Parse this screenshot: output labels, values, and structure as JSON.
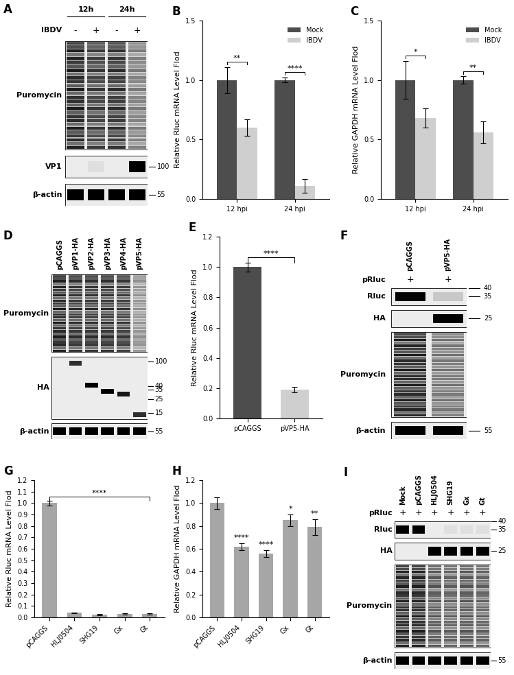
{
  "chart_data": [
    {
      "panel": "B",
      "type": "bar",
      "ylabel": "Relative Rluc mRNA Level Flod",
      "categories": [
        "12 hpi",
        "24 hpi"
      ],
      "series": [
        {
          "name": "Mock",
          "color": "#4d4d4d",
          "values": [
            1.0,
            1.0
          ],
          "errors": [
            0.11,
            0.02
          ]
        },
        {
          "name": "IBDV",
          "color": "#cfcfcf",
          "values": [
            0.6,
            0.11
          ],
          "errors": [
            0.07,
            0.06
          ]
        }
      ],
      "significance": [
        "**",
        "****"
      ],
      "ylim": [
        0,
        1.5
      ],
      "yticks": [
        {
          "value": 0,
          "label": "0.0"
        },
        {
          "value": 0.5,
          "label": "0.5"
        },
        {
          "value": 1,
          "label": "1.0"
        },
        {
          "value": 1.5,
          "label": "1.5"
        }
      ],
      "legend": "upper right"
    },
    {
      "panel": "C",
      "type": "bar",
      "ylabel": "Relative GAPDH mRNA Level Flod",
      "categories": [
        "12 hpi",
        "24 hpi"
      ],
      "series": [
        {
          "name": "Mock",
          "color": "#4d4d4d",
          "values": [
            1.0,
            1.0
          ],
          "errors": [
            0.16,
            0.03
          ]
        },
        {
          "name": "IBDV",
          "color": "#cfcfcf",
          "values": [
            0.68,
            0.56
          ],
          "errors": [
            0.08,
            0.09
          ]
        }
      ],
      "significance": [
        "*",
        "**"
      ],
      "ylim": [
        0,
        1.5
      ],
      "yticks": [
        {
          "value": 0,
          "label": "0.0"
        },
        {
          "value": 0.5,
          "label": "0.5"
        },
        {
          "value": 1,
          "label": "1.0"
        },
        {
          "value": 1.5,
          "label": "1.5"
        }
      ],
      "legend": "upper right"
    },
    {
      "panel": "E",
      "type": "bar",
      "ylabel": "Relative Rluc mRNA Level Flod",
      "categories": [
        "pCAGGS",
        "pVP5-HA"
      ],
      "values": [
        1.0,
        0.19
      ],
      "errors": [
        0.03,
        0.02
      ],
      "colors": [
        "#4d4d4d",
        "#cfcfcf"
      ],
      "bracket": {
        "from": "pCAGGS",
        "to": "pVP5-HA",
        "label": "****"
      },
      "ylim": [
        0,
        1.2
      ],
      "yticks": [
        {
          "value": 0,
          "label": "0.0"
        },
        {
          "value": 0.2,
          "label": "0.2"
        },
        {
          "value": 0.4,
          "label": "0.4"
        },
        {
          "value": 0.6,
          "label": "0.6"
        },
        {
          "value": 0.8,
          "label": "0.8"
        },
        {
          "value": 1,
          "label": "1.0"
        },
        {
          "value": 1.2,
          "label": "1.2"
        }
      ]
    },
    {
      "panel": "G",
      "type": "bar",
      "ylabel": "Relative Rluc mRNA Level Flod",
      "categories": [
        "pCAGGS",
        "HLJ0504",
        "SHG19",
        "Gx",
        "Gt"
      ],
      "values": [
        1.0,
        0.04,
        0.025,
        0.03,
        0.03
      ],
      "errors": [
        0.02,
        0.005,
        0.004,
        0.004,
        0.004
      ],
      "color": "#a6a6a6",
      "bracket": {
        "from": "pCAGGS",
        "to": "Gt",
        "label": "****"
      },
      "ylim": [
        0,
        1.2
      ],
      "yticks": [
        {
          "value": 0,
          "label": "0.0"
        },
        {
          "value": 0.1,
          "label": "0.1"
        },
        {
          "value": 0.2,
          "label": "0.2"
        },
        {
          "value": 0.3,
          "label": "0.3"
        },
        {
          "value": 0.4,
          "label": "0.4"
        },
        {
          "value": 0.5,
          "label": "0.5"
        },
        {
          "value": 0.6,
          "label": "0.6"
        },
        {
          "value": 0.7,
          "label": "0.7"
        },
        {
          "value": 0.8,
          "label": "0.8"
        },
        {
          "value": 0.9,
          "label": "0.9"
        },
        {
          "value": 1,
          "label": "1.0"
        },
        {
          "value": 1.1,
          "label": "1.1"
        },
        {
          "value": 1.2,
          "label": "1.2"
        }
      ]
    },
    {
      "panel": "H",
      "type": "bar",
      "ylabel": "Relative GAPDH mRNA Level Flod",
      "categories": [
        "pCAGGS",
        "HLJ0504",
        "SHG19",
        "Gx",
        "Gt"
      ],
      "values": [
        1.0,
        0.62,
        0.56,
        0.85,
        0.79
      ],
      "errors": [
        0.05,
        0.03,
        0.03,
        0.05,
        0.07
      ],
      "color": "#a6a6a6",
      "significance": [
        null,
        "****",
        "****",
        "*",
        "**"
      ],
      "ylim": [
        0,
        1.2
      ],
      "yticks": [
        {
          "value": 0,
          "label": "0.0"
        },
        {
          "value": 0.2,
          "label": "0.2"
        },
        {
          "value": 0.4,
          "label": "0.4"
        },
        {
          "value": 0.6,
          "label": "0.6"
        },
        {
          "value": 0.8,
          "label": "0.8"
        },
        {
          "value": 1,
          "label": "1.0"
        },
        {
          "value": 1.2,
          "label": "1.2"
        }
      ]
    }
  ],
  "blots": [
    {
      "panel": "A",
      "lanes": [
        null,
        null,
        null,
        null
      ],
      "column_groups": [
        {
          "label": "12h",
          "span": 2
        },
        {
          "label": "24h",
          "span": 2
        }
      ],
      "treatment": {
        "label": "IBDV",
        "values": [
          "-",
          "+",
          "-",
          "+"
        ]
      },
      "rows": [
        {
          "label": "Puromycin",
          "kind": "smear",
          "signal": [
            1.0,
            0.85,
            0.9,
            0.5
          ],
          "markers": []
        },
        {
          "label": "VP1",
          "kind": "band",
          "signal": [
            0,
            0.05,
            0,
            1.0
          ],
          "markers": [
            100
          ]
        },
        {
          "label": "β-actin",
          "kind": "band",
          "signal": [
            1.0,
            1.0,
            1.0,
            1.0
          ],
          "markers": [
            55
          ]
        }
      ]
    },
    {
      "panel": "D",
      "lanes": [
        "pCAGGS",
        "pVP1-HA",
        "pVP2-HA",
        "pVP3-HA",
        "pVP4-HA",
        "pVP5-HA"
      ],
      "rows": [
        {
          "label": "Puromycin",
          "kind": "smear",
          "signal": [
            1.0,
            0.9,
            0.9,
            0.9,
            0.85,
            0.4
          ],
          "markers": []
        },
        {
          "label": "HA",
          "kind": "ladder",
          "band_kda": [
            null,
            95,
            42,
            33,
            30,
            14
          ],
          "signal": [
            0,
            0.8,
            1.0,
            1.0,
            0.9,
            0.8
          ],
          "markers": [
            100,
            40,
            35,
            25,
            15
          ]
        },
        {
          "label": "β-actin",
          "kind": "band",
          "signal": [
            1.0,
            1.0,
            1.0,
            1.0,
            1.0,
            1.0
          ],
          "markers": [
            55
          ]
        }
      ]
    },
    {
      "panel": "F",
      "lanes": [
        "pCAGGS",
        "pVP5-HA"
      ],
      "treatment": {
        "label": "pRluc",
        "values": [
          "+",
          "+"
        ]
      },
      "rows": [
        {
          "label": "Rluc",
          "kind": "band",
          "signal": [
            1.0,
            0.15
          ],
          "markers": [
            40,
            35
          ]
        },
        {
          "label": "HA",
          "kind": "band",
          "signal": [
            0,
            1.0
          ],
          "markers": [
            25
          ]
        },
        {
          "label": "Puromycin",
          "kind": "smear",
          "signal": [
            1.0,
            0.55
          ],
          "markers": []
        },
        {
          "label": "β-actin",
          "kind": "band",
          "signal": [
            1.0,
            1.0
          ],
          "markers": [
            55
          ]
        }
      ]
    },
    {
      "panel": "I",
      "lanes": [
        "Mock",
        "pCAGGS",
        "HLJ0504",
        "SHG19",
        "Gx",
        "Gt"
      ],
      "treatment": {
        "label": "pRluc",
        "values": [
          "+",
          "+",
          "+",
          "+",
          "+",
          "+"
        ]
      },
      "rows": [
        {
          "label": "Rluc",
          "kind": "band",
          "signal": [
            1.0,
            1.0,
            0,
            0.05,
            0.05,
            0.05
          ],
          "markers": [
            40,
            35
          ]
        },
        {
          "label": "HA",
          "kind": "band",
          "signal": [
            0,
            0,
            1.0,
            1.0,
            1.0,
            1.0
          ],
          "markers": [
            25
          ]
        },
        {
          "label": "Puromycin",
          "kind": "smear",
          "signal": [
            1.0,
            1.0,
            0.7,
            0.65,
            0.7,
            0.65
          ],
          "markers": []
        },
        {
          "label": "β-actin",
          "kind": "band",
          "signal": [
            1.0,
            1.0,
            1.0,
            1.0,
            1.0,
            1.0
          ],
          "markers": [
            55
          ]
        }
      ]
    }
  ]
}
